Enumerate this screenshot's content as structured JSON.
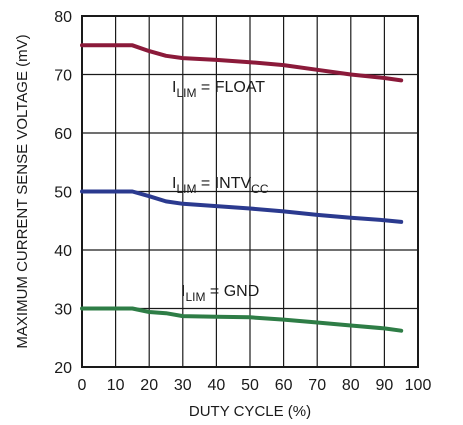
{
  "chart_data": {
    "type": "line",
    "title": "",
    "xlabel": "DUTY CYCLE (%)",
    "ylabel": "MAXIMUM CURRENT SENSE VOLTAGE (mV)",
    "xlim": [
      0,
      100
    ],
    "ylim": [
      20,
      80
    ],
    "xticks": [
      0,
      10,
      20,
      30,
      40,
      50,
      60,
      70,
      80,
      90,
      100
    ],
    "yticks": [
      20,
      30,
      40,
      50,
      60,
      70,
      80
    ],
    "grid": true,
    "series": [
      {
        "name": "FLOAT",
        "label": {
          "main": "I",
          "sub": "LIM",
          "rest": " = FLOAT",
          "sub2": ""
        },
        "color": "#8b1a3a",
        "x": [
          0,
          10,
          15,
          20,
          25,
          30,
          40,
          50,
          60,
          70,
          80,
          90,
          95
        ],
        "y": [
          75.0,
          75.0,
          75.0,
          74.0,
          73.2,
          72.8,
          72.5,
          72.1,
          71.6,
          70.8,
          70.0,
          69.4,
          69.0
        ]
      },
      {
        "name": "INTVCC",
        "label": {
          "main": "I",
          "sub": "LIM",
          "rest": " = INTV",
          "sub2": "CC"
        },
        "color": "#2b3a8f",
        "x": [
          0,
          10,
          15,
          20,
          25,
          30,
          40,
          50,
          60,
          70,
          80,
          90,
          95
        ],
        "y": [
          50.0,
          50.0,
          50.0,
          49.2,
          48.3,
          47.9,
          47.5,
          47.1,
          46.6,
          46.0,
          45.5,
          45.1,
          44.8
        ]
      },
      {
        "name": "GND",
        "label": {
          "main": "I",
          "sub": "LIM",
          "rest": " = GND",
          "sub2": ""
        },
        "color": "#2e7d46",
        "x": [
          0,
          10,
          15,
          20,
          25,
          30,
          40,
          50,
          60,
          70,
          80,
          90,
          95
        ],
        "y": [
          30.0,
          30.0,
          30.0,
          29.4,
          29.2,
          28.7,
          28.6,
          28.5,
          28.1,
          27.6,
          27.1,
          26.6,
          26.2
        ]
      }
    ]
  }
}
